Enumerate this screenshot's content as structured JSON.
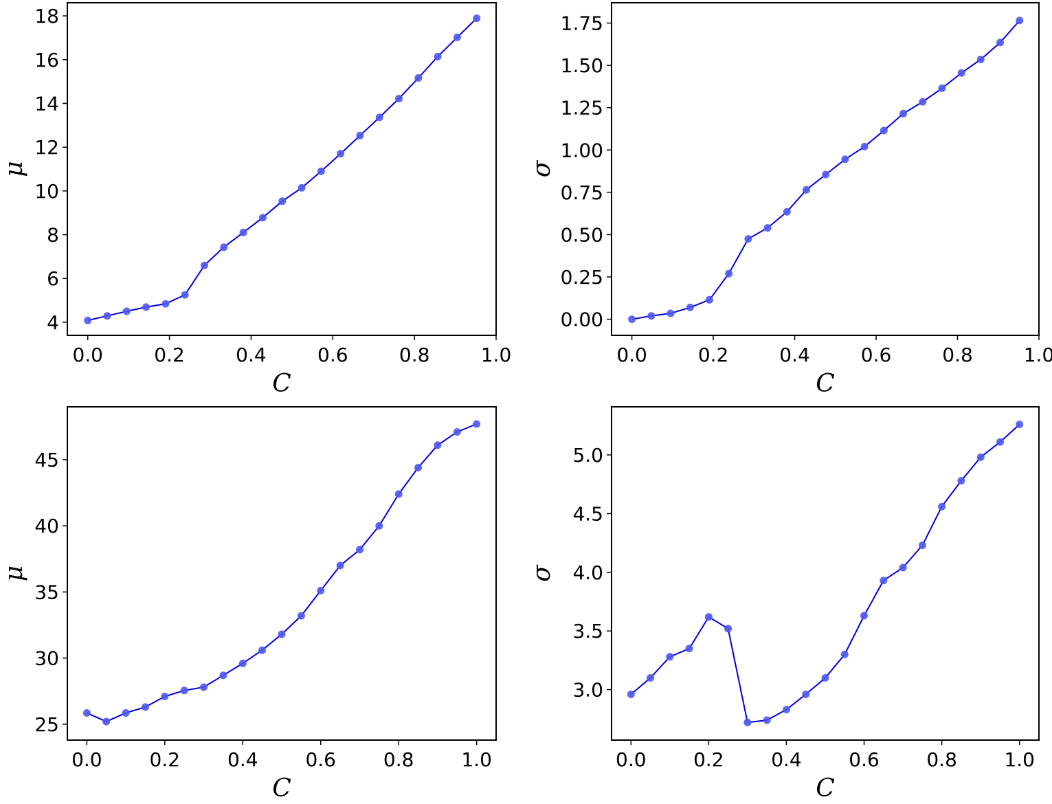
{
  "chart_data": [
    {
      "type": "line",
      "xlabel": "C",
      "ylabel": "μ",
      "xlim": [
        -0.05,
        1.0
      ],
      "ylim": [
        3.4,
        18.6
      ],
      "xticks": [
        0.0,
        0.2,
        0.4,
        0.6,
        0.8,
        1.0
      ],
      "xtick_labels": [
        "0.0",
        "0.2",
        "0.4",
        "0.6",
        "0.8",
        "1.0"
      ],
      "yticks": [
        4,
        6,
        8,
        10,
        12,
        14,
        16,
        18
      ],
      "ytick_labels": [
        "4",
        "6",
        "8",
        "10",
        "12",
        "14",
        "16",
        "18"
      ],
      "grid": false,
      "x": [
        0.0,
        0.0476,
        0.0952,
        0.1429,
        0.1905,
        0.2381,
        0.2857,
        0.3333,
        0.381,
        0.4286,
        0.4762,
        0.5238,
        0.5714,
        0.619,
        0.6667,
        0.7143,
        0.7619,
        0.8095,
        0.8571,
        0.9048,
        0.9524
      ],
      "y": [
        4.08,
        4.29,
        4.5,
        4.69,
        4.84,
        5.25,
        6.6,
        7.43,
        8.1,
        8.78,
        9.53,
        10.14,
        10.9,
        11.7,
        12.53,
        13.36,
        14.22,
        15.16,
        16.14,
        17.02,
        17.89
      ]
    },
    {
      "type": "line",
      "xlabel": "C",
      "ylabel": "σ",
      "xlim": [
        -0.05,
        1.0
      ],
      "ylim": [
        -0.095,
        1.87
      ],
      "xticks": [
        0.0,
        0.2,
        0.4,
        0.6,
        0.8,
        1.0
      ],
      "xtick_labels": [
        "0.0",
        "0.2",
        "0.4",
        "0.6",
        "0.8",
        "1.0"
      ],
      "yticks": [
        0.0,
        0.25,
        0.5,
        0.75,
        1.0,
        1.25,
        1.5,
        1.75
      ],
      "ytick_labels": [
        "0.00",
        "0.25",
        "0.50",
        "0.75",
        "1.00",
        "1.25",
        "1.50",
        "1.75"
      ],
      "grid": false,
      "x": [
        0.0,
        0.0476,
        0.0952,
        0.1429,
        0.1905,
        0.2381,
        0.2857,
        0.3333,
        0.381,
        0.4286,
        0.4762,
        0.5238,
        0.5714,
        0.619,
        0.6667,
        0.7143,
        0.7619,
        0.8095,
        0.8571,
        0.9048,
        0.9524
      ],
      "y": [
        0.0,
        0.02,
        0.035,
        0.07,
        0.115,
        0.27,
        0.475,
        0.54,
        0.635,
        0.765,
        0.855,
        0.945,
        1.02,
        1.115,
        1.215,
        1.285,
        1.365,
        1.455,
        1.535,
        1.635,
        1.765
      ]
    },
    {
      "type": "line",
      "xlabel": "C",
      "ylabel": "μ",
      "xlim": [
        -0.05,
        1.05
      ],
      "ylim": [
        23.8,
        49.0
      ],
      "xticks": [
        0.0,
        0.2,
        0.4,
        0.6,
        0.8,
        1.0
      ],
      "xtick_labels": [
        "0.0",
        "0.2",
        "0.4",
        "0.6",
        "0.8",
        "1.0"
      ],
      "yticks": [
        25,
        30,
        35,
        40,
        45
      ],
      "ytick_labels": [
        "25",
        "30",
        "35",
        "40",
        "45"
      ],
      "grid": false,
      "x": [
        0.0,
        0.05,
        0.1,
        0.15,
        0.2,
        0.25,
        0.3,
        0.35,
        0.4,
        0.45,
        0.5,
        0.55,
        0.6,
        0.65,
        0.7,
        0.75,
        0.8,
        0.85,
        0.9,
        0.95,
        1.0
      ],
      "y": [
        25.85,
        25.2,
        25.85,
        26.3,
        27.1,
        27.55,
        27.8,
        28.7,
        29.6,
        30.6,
        31.8,
        33.2,
        35.1,
        37.0,
        38.2,
        40.0,
        42.4,
        44.4,
        46.1,
        47.1,
        47.7
      ]
    },
    {
      "type": "line",
      "xlabel": "C",
      "ylabel": "σ",
      "xlim": [
        -0.05,
        1.05
      ],
      "ylim": [
        2.57,
        5.41
      ],
      "xticks": [
        0.0,
        0.2,
        0.4,
        0.6,
        0.8,
        1.0
      ],
      "xtick_labels": [
        "0.0",
        "0.2",
        "0.4",
        "0.6",
        "0.8",
        "1.0"
      ],
      "yticks": [
        3.0,
        3.5,
        4.0,
        4.5,
        5.0
      ],
      "ytick_labels": [
        "3.0",
        "3.5",
        "4.0",
        "4.5",
        "5.0"
      ],
      "grid": false,
      "x": [
        0.0,
        0.05,
        0.1,
        0.15,
        0.2,
        0.25,
        0.3,
        0.35,
        0.4,
        0.45,
        0.5,
        0.55,
        0.6,
        0.65,
        0.7,
        0.75,
        0.8,
        0.85,
        0.9,
        0.95,
        1.0
      ],
      "y": [
        2.96,
        3.1,
        3.28,
        3.35,
        3.62,
        3.52,
        2.72,
        2.74,
        2.83,
        2.96,
        3.1,
        3.3,
        3.63,
        3.93,
        4.04,
        4.23,
        4.56,
        4.78,
        4.98,
        5.11,
        5.26
      ]
    }
  ]
}
